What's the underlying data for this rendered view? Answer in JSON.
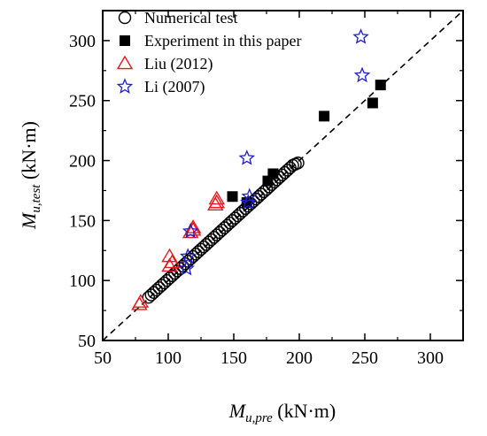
{
  "chart_data": {
    "type": "scatter",
    "xlabel": {
      "base": "M",
      "sub": "u,pre",
      "unit": " (kN·m)"
    },
    "ylabel": {
      "base": "M",
      "sub": "u,test",
      "unit": " (kN·m)"
    },
    "xlim": [
      50,
      325
    ],
    "ylim": [
      50,
      325
    ],
    "xticks": [
      50,
      100,
      150,
      200,
      250,
      300
    ],
    "yticks": [
      50,
      100,
      150,
      200,
      250,
      300
    ],
    "grid": false,
    "legend_position": "top-left",
    "reference_line": {
      "style": "dashed",
      "from": [
        50,
        50
      ],
      "to": [
        325,
        325
      ]
    },
    "series": [
      {
        "name": "Numerical test",
        "marker": "circle-open",
        "color": "#000000",
        "points": [
          [
            85,
            86
          ],
          [
            87,
            88
          ],
          [
            89,
            90
          ],
          [
            91,
            92
          ],
          [
            93,
            94
          ],
          [
            95,
            96
          ],
          [
            97,
            98
          ],
          [
            99,
            100
          ],
          [
            101,
            102
          ],
          [
            103,
            104
          ],
          [
            105,
            106
          ],
          [
            107,
            108
          ],
          [
            109,
            110
          ],
          [
            111,
            112
          ],
          [
            113,
            114
          ],
          [
            115,
            116
          ],
          [
            117,
            118
          ],
          [
            119,
            120
          ],
          [
            121,
            122
          ],
          [
            123,
            124
          ],
          [
            125,
            126
          ],
          [
            127,
            128
          ],
          [
            129,
            130
          ],
          [
            131,
            132
          ],
          [
            133,
            134
          ],
          [
            135,
            136
          ],
          [
            137,
            138
          ],
          [
            139,
            140
          ],
          [
            141,
            142
          ],
          [
            143,
            144
          ],
          [
            145,
            146
          ],
          [
            147,
            148
          ],
          [
            149,
            150
          ],
          [
            151,
            152
          ],
          [
            153,
            154
          ],
          [
            155,
            156
          ],
          [
            157,
            158
          ],
          [
            159,
            160
          ],
          [
            161,
            162
          ],
          [
            163,
            164
          ],
          [
            165,
            166
          ],
          [
            167,
            168
          ],
          [
            169,
            170
          ],
          [
            171,
            172
          ],
          [
            173,
            174
          ],
          [
            175,
            176
          ],
          [
            177,
            178
          ],
          [
            179,
            180
          ],
          [
            181,
            182
          ],
          [
            183,
            184
          ],
          [
            185,
            186
          ],
          [
            187,
            188
          ],
          [
            189,
            190
          ],
          [
            191,
            192
          ],
          [
            193,
            194
          ],
          [
            195,
            196
          ],
          [
            197,
            197
          ],
          [
            199,
            198
          ]
        ]
      },
      {
        "name": "Experiment in this paper",
        "marker": "square-filled",
        "color": "#000000",
        "points": [
          [
            149,
            170
          ],
          [
            160,
            165
          ],
          [
            176,
            183
          ],
          [
            180,
            189
          ],
          [
            219,
            237
          ],
          [
            256,
            248
          ],
          [
            262,
            263
          ]
        ]
      },
      {
        "name": "Liu (2012)",
        "marker": "triangle-open",
        "color": "#e41a1c",
        "points": [
          [
            78,
            80
          ],
          [
            79,
            82
          ],
          [
            101,
            120
          ],
          [
            101,
            112
          ],
          [
            103,
            115
          ],
          [
            117,
            140
          ],
          [
            119,
            144
          ],
          [
            119,
            142
          ],
          [
            136,
            163
          ],
          [
            137,
            165
          ],
          [
            137,
            168
          ]
        ]
      },
      {
        "name": "Li (2007)",
        "marker": "star-open",
        "color": "#1f1fcc",
        "points": [
          [
            114,
            110
          ],
          [
            115,
            120
          ],
          [
            117,
            141
          ],
          [
            160,
            202
          ],
          [
            161,
            165
          ],
          [
            162,
            170
          ],
          [
            247,
            303
          ],
          [
            248,
            271
          ]
        ]
      }
    ]
  }
}
